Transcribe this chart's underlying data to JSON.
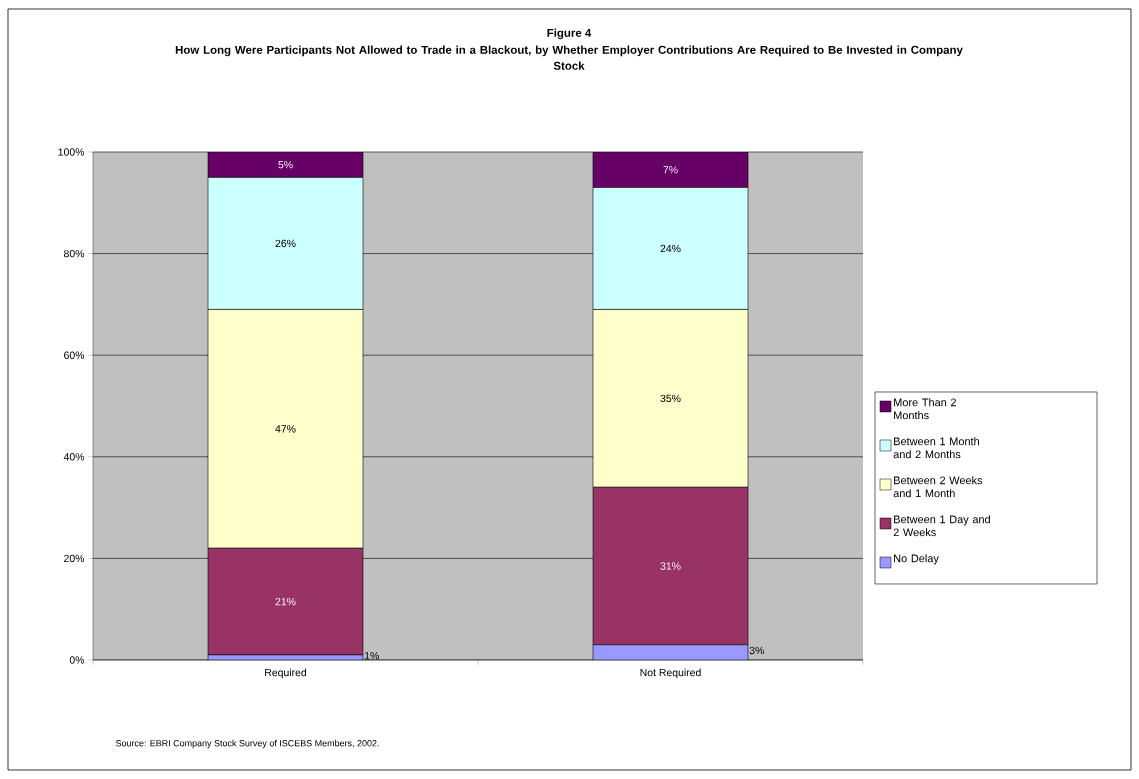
{
  "chart_data": {
    "type": "bar",
    "stacked": true,
    "title": "Figure 4",
    "subtitle": "How Long Were Participants Not Allowed to Trade in a Blackout, by Whether Employer Contributions Are Required to Be Invested in Company Stock",
    "categories": [
      "Required",
      "Not Required"
    ],
    "series": [
      {
        "name": "No Delay",
        "color": "#9999ff",
        "values": [
          1,
          3
        ],
        "value_labels": [
          "1%",
          "3%"
        ]
      },
      {
        "name": "Between 1 Day and 2 Weeks",
        "color": "#993366",
        "values": [
          21,
          31
        ],
        "value_labels": [
          "21%",
          "31%"
        ]
      },
      {
        "name": "Between 2 Weeks and 1 Month",
        "color": "#ffffcc",
        "values": [
          47,
          35
        ],
        "value_labels": [
          "47%",
          "35%"
        ]
      },
      {
        "name": "Between 1 Month and 2 Months",
        "color": "#ccffff",
        "values": [
          26,
          24
        ],
        "value_labels": [
          "26%",
          "24%"
        ]
      },
      {
        "name": "More Than 2 Months",
        "color": "#660066",
        "values": [
          5,
          7
        ],
        "value_labels": [
          "5%",
          "7%"
        ]
      }
    ],
    "ylim": [
      0,
      100
    ],
    "yticks": [
      {
        "value": 0,
        "label": "0%"
      },
      {
        "value": 20,
        "label": "20%"
      },
      {
        "value": 40,
        "label": "40%"
      },
      {
        "value": 60,
        "label": "60%"
      },
      {
        "value": 80,
        "label": "80%"
      },
      {
        "value": 100,
        "label": "100%"
      }
    ],
    "grid": "y",
    "legend": "right",
    "annotations": [
      "Source: EBRI Company Stock Survey of ISCEBS Members, 2002."
    ]
  }
}
